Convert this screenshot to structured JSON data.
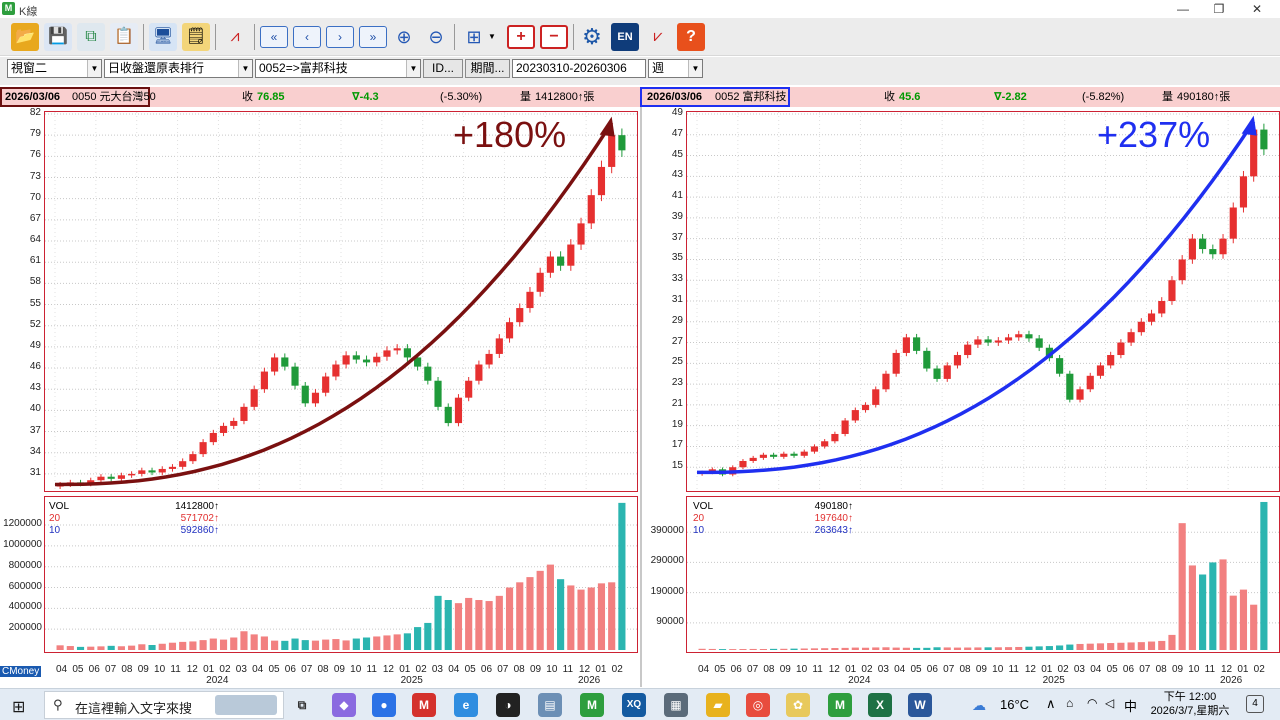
{
  "window": {
    "title": "K線",
    "app_icon": "M",
    "controls": {
      "minimize": "—",
      "maximize": "❐",
      "close": "✕"
    }
  },
  "toolbar": {
    "icons": [
      "open-folder-icon",
      "save-icon",
      "copy-icon",
      "paste-icon",
      "monitor-icon",
      "notes-icon",
      "chart-tool-icon",
      "first-page-icon",
      "prev-page-icon",
      "next-page-icon",
      "last-page-icon",
      "zoom-in-icon",
      "zoom-out-icon",
      "layout-grid-icon",
      "add-window-icon",
      "remove-window-icon",
      "settings-icon",
      "english-icon",
      "indicator-icon",
      "help-icon"
    ],
    "en_label": "EN",
    "help_label": "?"
  },
  "selectors": {
    "window_select": "視窗二",
    "sort_select": "日收盤還原表排行",
    "stock_select": "0052=>富邦科技",
    "id_button": "ID...",
    "period_button": "期間...",
    "period_value": "20230310-20260306",
    "freq_select": "週"
  },
  "left_chart": {
    "info": {
      "date": "2026/03/06",
      "name": "0050 元大台灣50",
      "close_label": "收",
      "close": "76.85",
      "change": "∇-4.3",
      "change_pct": "(-5.30%)",
      "vol_label": "量",
      "vol": "1412800↑張"
    },
    "annotation": "+180%",
    "y_ticks": [
      "82",
      "79",
      "76",
      "73",
      "70",
      "67",
      "64",
      "61",
      "58",
      "55",
      "52",
      "49",
      "46",
      "43",
      "40",
      "37",
      "34",
      "31"
    ],
    "vol_ticks": [
      "1200000",
      "1000000",
      "800000",
      "600000",
      "400000",
      "200000"
    ],
    "legend": {
      "vol_label": "VOL",
      "vol": "1412800↑",
      "ma20_label": "20",
      "ma20": "571702↑",
      "ma10_label": "10",
      "ma10": "592860↑"
    },
    "x_months": [
      "04",
      "05",
      "06",
      "07",
      "08",
      "09",
      "10",
      "11",
      "12",
      "01",
      "02",
      "03",
      "04",
      "05",
      "06",
      "07",
      "08",
      "09",
      "10",
      "11",
      "12",
      "01",
      "02",
      "03",
      "04",
      "05",
      "06",
      "07",
      "08",
      "09",
      "10",
      "11",
      "12",
      "01",
      "02"
    ],
    "years": [
      "2024",
      "2025",
      "2026"
    ],
    "brand": "CMoney"
  },
  "right_chart": {
    "info": {
      "date": "2026/03/06",
      "name": "0052 富邦科技",
      "close_label": "收",
      "close": "45.6",
      "change": "∇-2.82",
      "change_pct": "(-5.82%)",
      "vol_label": "量",
      "vol": "490180↑張"
    },
    "annotation": "+237%",
    "y_ticks": [
      "49",
      "47",
      "45",
      "43",
      "41",
      "39",
      "37",
      "35",
      "33",
      "31",
      "29",
      "27",
      "25",
      "23",
      "21",
      "19",
      "17",
      "15"
    ],
    "vol_ticks": [
      "390000",
      "290000",
      "190000",
      "90000"
    ],
    "legend": {
      "vol_label": "VOL",
      "vol": "490180↑",
      "ma20_label": "20",
      "ma20": "197640↑",
      "ma10_label": "10",
      "ma10": "263643↑"
    },
    "x_months": [
      "04",
      "05",
      "06",
      "07",
      "08",
      "09",
      "10",
      "11",
      "12",
      "01",
      "02",
      "03",
      "04",
      "05",
      "06",
      "07",
      "08",
      "09",
      "10",
      "11",
      "12",
      "01",
      "02",
      "03",
      "04",
      "05",
      "06",
      "07",
      "08",
      "09",
      "10",
      "11",
      "12",
      "01",
      "02"
    ],
    "years": [
      "2024",
      "2025",
      "2026"
    ]
  },
  "chart_data": [
    {
      "type": "candlestick",
      "title": "0050 元大台灣50",
      "frequency": "週",
      "ylim": [
        29,
        82
      ],
      "close_series": [
        29.5,
        29.8,
        29.6,
        30.1,
        30.6,
        30.3,
        30.8,
        31.0,
        31.5,
        31.2,
        31.7,
        32.0,
        32.8,
        33.8,
        35.5,
        36.8,
        37.8,
        38.5,
        40.5,
        43.0,
        45.5,
        47.5,
        46.2,
        43.5,
        41.0,
        42.5,
        44.8,
        46.5,
        47.8,
        47.2,
        46.8,
        47.6,
        48.5,
        48.8,
        47.5,
        46.2,
        44.2,
        40.5,
        38.2,
        41.8,
        44.2,
        46.5,
        48.0,
        50.2,
        52.5,
        54.5,
        56.8,
        59.5,
        61.8,
        60.5,
        63.5,
        66.5,
        70.5,
        74.5,
        79.0,
        76.85
      ],
      "volume": [
        45000,
        38000,
        30000,
        32000,
        35000,
        40000,
        36000,
        42000,
        55000,
        48000,
        60000,
        70000,
        78000,
        82000,
        95000,
        110000,
        100000,
        120000,
        180000,
        150000,
        130000,
        90000,
        88000,
        110000,
        95000,
        90000,
        100000,
        105000,
        92000,
        110000,
        120000,
        130000,
        140000,
        150000,
        160000,
        220000,
        260000,
        520000,
        480000,
        450000,
        500000,
        480000,
        470000,
        520000,
        600000,
        650000,
        700000,
        760000,
        820000,
        680000,
        620000,
        580000,
        600000,
        640000,
        650000,
        1412800
      ]
    },
    {
      "type": "candlestick",
      "title": "0052 富邦科技",
      "frequency": "週",
      "ylim": [
        13,
        49
      ],
      "close_series": [
        14.5,
        14.8,
        14.3,
        15.0,
        15.6,
        15.9,
        16.2,
        16.0,
        16.3,
        16.1,
        16.5,
        17.0,
        17.5,
        18.2,
        19.5,
        20.5,
        21.0,
        22.5,
        24.0,
        26.0,
        27.5,
        26.2,
        24.5,
        23.5,
        24.8,
        25.8,
        26.8,
        27.3,
        27.0,
        27.2,
        27.5,
        27.8,
        27.4,
        26.5,
        25.5,
        24.0,
        21.5,
        22.5,
        23.8,
        24.8,
        25.8,
        27.0,
        28.0,
        29.0,
        29.8,
        31.0,
        33.0,
        35.0,
        37.0,
        36.0,
        35.5,
        37.0,
        40.0,
        43.0,
        47.5,
        45.6
      ],
      "volume": [
        4000,
        3500,
        3000,
        3000,
        3200,
        3500,
        3300,
        3800,
        4000,
        4500,
        5000,
        5500,
        6000,
        6500,
        7000,
        8000,
        7500,
        8500,
        9000,
        8000,
        7500,
        7000,
        7200,
        9000,
        8500,
        8000,
        8200,
        8500,
        8800,
        9000,
        9500,
        10000,
        11000,
        12000,
        13000,
        15000,
        18000,
        20000,
        21000,
        22000,
        23000,
        24000,
        25000,
        26000,
        28000,
        30000,
        50000,
        420000,
        280000,
        250000,
        290000,
        300000,
        180000,
        200000,
        150000,
        490180
      ]
    }
  ],
  "taskbar": {
    "search_placeholder": "在這裡輸入文字來搜",
    "weather": "16°C",
    "ime": "中",
    "time": "下午 12:00",
    "date": "2026/3/7,星期六",
    "notif": "4"
  }
}
